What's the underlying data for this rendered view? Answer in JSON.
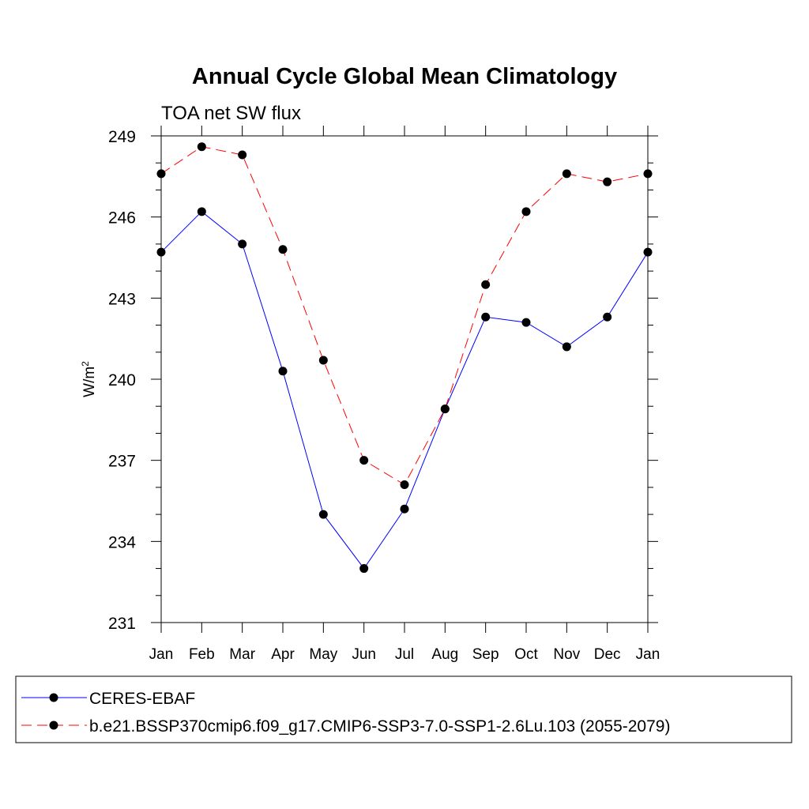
{
  "chart_data": {
    "type": "line",
    "title": "Annual Cycle Global Mean Climatology",
    "subtitle": "TOA net SW flux",
    "ylabel": "W/m",
    "ylabel_sup": "2",
    "xlabel": "",
    "categories": [
      "Jan",
      "Feb",
      "Mar",
      "Apr",
      "May",
      "Jun",
      "Jul",
      "Aug",
      "Sep",
      "Oct",
      "Nov",
      "Dec",
      "Jan"
    ],
    "ylim": [
      231,
      249
    ],
    "yticks": [
      231,
      234,
      237,
      240,
      243,
      246,
      249
    ],
    "y_minor_step": 1,
    "grid": false,
    "legend_position": "bottom",
    "series": [
      {
        "name": "CERES-EBAF",
        "color": "#0000ff",
        "line_style": "solid",
        "marker": "filled-circle",
        "values": [
          244.7,
          246.2,
          245.0,
          240.3,
          235.0,
          233.0,
          235.2,
          238.9,
          242.3,
          242.1,
          241.2,
          242.3,
          244.7
        ]
      },
      {
        "name": "b.e21.BSSP370cmip6.f09_g17.CMIP6-SSP3-7.0-SSP1-2.6Lu.103 (2055-2079)",
        "color": "#ff0000",
        "line_style": "dashed",
        "marker": "filled-circle",
        "values": [
          247.6,
          248.6,
          248.3,
          244.8,
          240.7,
          237.0,
          236.1,
          238.9,
          243.5,
          246.2,
          247.6,
          247.3,
          247.6
        ]
      }
    ]
  }
}
